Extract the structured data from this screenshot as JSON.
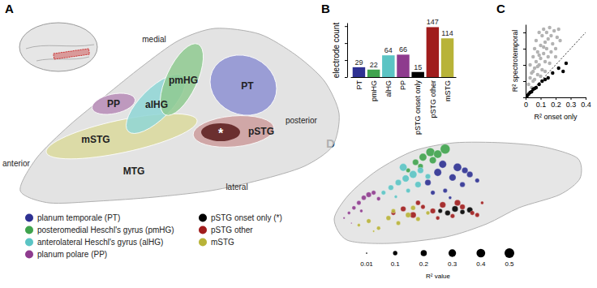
{
  "figure": {
    "panel_labels": [
      "A",
      "B",
      "C",
      "D"
    ]
  },
  "diagram": {
    "regions": [
      {
        "label": "PT",
        "color": "#8d90d2"
      },
      {
        "label": "pmHG",
        "color": "#8fca90"
      },
      {
        "label": "alHG",
        "color": "#8fd6d6"
      },
      {
        "label": "PP",
        "color": "#b78cb7"
      },
      {
        "label": "pSTG",
        "color": "#cc9c9c"
      },
      {
        "label": "mSTG",
        "color": "#dbd99c"
      }
    ],
    "onset_marker": "*",
    "marker_color": "#6b2f2f",
    "other_labels": [
      "MTG"
    ],
    "orientation_labels": [
      "medial",
      "posterior",
      "lateral",
      "anterior"
    ],
    "key_entries": [
      {
        "label": "planum temporale (PT)",
        "color": "#2e3192"
      },
      {
        "label": "posteromedial Heschl's gyrus (pmHG)",
        "color": "#3fa34d"
      },
      {
        "label": "anterolateral Heschl's gyrus (alHG)",
        "color": "#5bc4c4"
      },
      {
        "label": "planum polare (PP)",
        "color": "#8e3b8e"
      },
      {
        "label": "pSTG onset only (*)",
        "color": "#000000"
      },
      {
        "label": "pSTG other",
        "color": "#a01c1c"
      },
      {
        "label": "mSTG",
        "color": "#b8b338"
      }
    ]
  },
  "chart_data": [
    {
      "type": "bar",
      "categories": [
        "PT",
        "pmHG",
        "alHG",
        "PP",
        "pSTG onset only",
        "pSTG other",
        "mSTG"
      ],
      "values": [
        29,
        22,
        64,
        66,
        15,
        147,
        114
      ],
      "colors": [
        "#2e3192",
        "#3fa34d",
        "#5bc4c4",
        "#8e3b8e",
        "#000000",
        "#a01c1c",
        "#b8b338"
      ],
      "ylabel": "electrode count",
      "ylim": [
        0,
        160
      ],
      "yticks": [
        0,
        50,
        100,
        150
      ],
      "tick_labels": "x",
      "data_labels": true
    },
    {
      "type": "scatter",
      "xlabel": "R² onset only",
      "ylabel": "R² spectrotemporal",
      "xlim": [
        0,
        0.4
      ],
      "ylim": [
        0,
        0.45
      ],
      "xticks": [
        0,
        0.1,
        0.2,
        0.3,
        0.4
      ],
      "yticks": [
        0,
        0.1,
        0.2,
        0.3,
        0.4
      ],
      "tick_labels": "x",
      "series": [
        {
          "color": "#b3b3b3",
          "x": [
            0.02,
            0.03,
            0.03,
            0.04,
            0.05,
            0.05,
            0.06,
            0.06,
            0.07,
            0.07,
            0.08,
            0.08,
            0.09,
            0.09,
            0.1,
            0.1,
            0.11,
            0.11,
            0.12,
            0.12,
            0.13,
            0.13,
            0.14,
            0.14,
            0.15,
            0.15,
            0.16,
            0.17,
            0.17,
            0.18,
            0.19,
            0.2,
            0.21,
            0.22,
            0.23,
            0.04,
            0.06,
            0.08,
            0.1,
            0.12,
            0.05,
            0.09,
            0.13,
            0.16,
            0.2
          ],
          "values": [
            0.08,
            0.12,
            0.2,
            0.15,
            0.25,
            0.1,
            0.3,
            0.18,
            0.22,
            0.35,
            0.14,
            0.28,
            0.4,
            0.2,
            0.32,
            0.24,
            0.38,
            0.17,
            0.27,
            0.42,
            0.22,
            0.34,
            0.3,
            0.4,
            0.25,
            0.36,
            0.43,
            0.28,
            0.38,
            0.33,
            0.41,
            0.3,
            0.37,
            0.42,
            0.35,
            0.06,
            0.11,
            0.19,
            0.13,
            0.31,
            0.16,
            0.26,
            0.16,
            0.21,
            0.25
          ]
        },
        {
          "color": "#000000",
          "x": [
            0.01,
            0.02,
            0.03,
            0.04,
            0.05,
            0.06,
            0.07,
            0.09,
            0.11,
            0.13,
            0.15,
            0.18,
            0.22,
            0.25,
            0.27
          ],
          "values": [
            0.01,
            0.02,
            0.03,
            0.035,
            0.05,
            0.055,
            0.06,
            0.08,
            0.1,
            0.11,
            0.12,
            0.15,
            0.18,
            0.16,
            0.21
          ]
        }
      ]
    },
    {
      "type": "scatter",
      "tick_labels": false,
      "xlim": [
        0,
        100
      ],
      "ylim": [
        0,
        100
      ],
      "series": [
        {
          "color": "#2e3192",
          "x": [
            38,
            42,
            45,
            48,
            50,
            52,
            55,
            58,
            44,
            47,
            53,
            40
          ],
          "values": [
            60,
            70,
            52,
            65,
            75,
            58,
            68,
            62,
            78,
            45,
            72,
            50
          ],
          "size": [
            0.2,
            0.3,
            0.1,
            0.25,
            0.35,
            0.15,
            0.2,
            0.1,
            0.3,
            0.05,
            0.2,
            0.1
          ]
        },
        {
          "color": "#3fa34d",
          "x": [
            30,
            33,
            36,
            39,
            42,
            45,
            35,
            40
          ],
          "values": [
            72,
            80,
            85,
            90,
            88,
            93,
            76,
            82
          ],
          "size": [
            0.1,
            0.2,
            0.3,
            0.4,
            0.35,
            0.5,
            0.15,
            0.25
          ]
        },
        {
          "color": "#5bc4c4",
          "x": [
            20,
            23,
            26,
            29,
            32,
            35,
            38,
            25,
            30,
            34,
            28
          ],
          "values": [
            50,
            55,
            60,
            64,
            68,
            72,
            66,
            46,
            52,
            58,
            75
          ],
          "size": [
            0.1,
            0.15,
            0.2,
            0.25,
            0.3,
            0.2,
            0.15,
            0.05,
            0.1,
            0.2,
            0.3
          ]
        },
        {
          "color": "#8e3b8e",
          "x": [
            4,
            6,
            8,
            10,
            12,
            14,
            16,
            18,
            7,
            11
          ],
          "values": [
            25,
            30,
            35,
            40,
            45,
            48,
            50,
            44,
            20,
            32
          ],
          "size": [
            0.02,
            0.05,
            0.08,
            0.1,
            0.12,
            0.15,
            0.1,
            0.08,
            0.01,
            0.05
          ]
        },
        {
          "color": "#000000",
          "x": [
            43,
            46,
            49,
            52,
            55
          ],
          "values": [
            32,
            30,
            34,
            31,
            33
          ],
          "size": [
            0.1,
            0.15,
            0.2,
            0.12,
            0.18
          ]
        },
        {
          "color": "#a01c1c",
          "x": [
            24,
            28,
            32,
            36,
            40,
            44,
            48,
            52,
            56,
            60,
            34,
            42,
            50,
            58
          ],
          "values": [
            30,
            34,
            28,
            36,
            32,
            38,
            27,
            36,
            30,
            40,
            40,
            25,
            40,
            28
          ],
          "size": [
            0.1,
            0.15,
            0.2,
            0.1,
            0.15,
            0.2,
            0.1,
            0.15,
            0.1,
            0.05,
            0.12,
            0.08,
            0.2,
            0.1
          ]
        },
        {
          "color": "#b8b338",
          "x": [
            10,
            14,
            18,
            22,
            26,
            30,
            34,
            38,
            16,
            24,
            32
          ],
          "values": [
            18,
            22,
            15,
            25,
            20,
            28,
            24,
            30,
            12,
            32,
            35
          ],
          "size": [
            0.05,
            0.1,
            0.08,
            0.12,
            0.1,
            0.15,
            0.1,
            0.08,
            0.02,
            0.1,
            0.12
          ]
        }
      ],
      "size_legend": {
        "title": "R² value",
        "values": [
          0.01,
          0.1,
          0.2,
          0.3,
          0.4,
          0.5
        ]
      }
    }
  ]
}
